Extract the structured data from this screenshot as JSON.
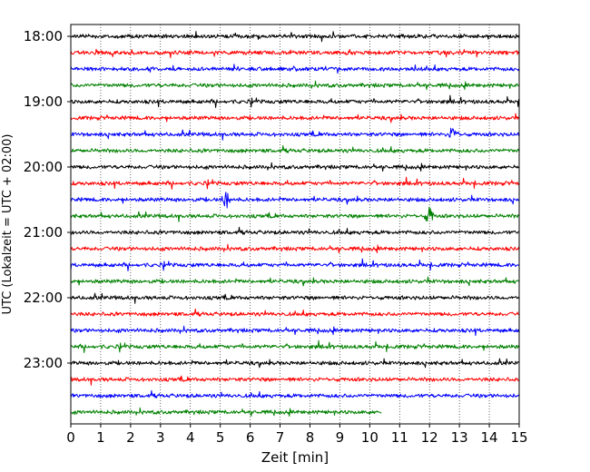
{
  "chart_data": {
    "type": "line",
    "title": "",
    "xlabel": "Zeit  [min]",
    "ylabel": "UTC (Lokalzeit = UTC + 02:00)",
    "xlim": [
      0,
      15
    ],
    "x_ticks": [
      "0",
      "1",
      "2",
      "3",
      "4",
      "5",
      "6",
      "7",
      "8",
      "9",
      "10",
      "11",
      "12",
      "13",
      "14",
      "15"
    ],
    "y_ticks": [
      "18:00",
      "19:00",
      "20:00",
      "21:00",
      "22:00",
      "23:00"
    ],
    "grid": "vertical dotted lines at each minute",
    "legend": "none",
    "trace_colors_cycle": [
      "#000000",
      "#ff0000",
      "#0000ff",
      "#008000"
    ],
    "traces": [
      {
        "start": "18:00",
        "color": "#000000",
        "end_min": 15
      },
      {
        "start": "18:15",
        "color": "#ff0000",
        "end_min": 15
      },
      {
        "start": "18:30",
        "color": "#0000ff",
        "end_min": 15
      },
      {
        "start": "18:45",
        "color": "#008000",
        "end_min": 15
      },
      {
        "start": "19:00",
        "color": "#000000",
        "end_min": 15
      },
      {
        "start": "19:15",
        "color": "#ff0000",
        "end_min": 15
      },
      {
        "start": "19:30",
        "color": "#0000ff",
        "end_min": 15
      },
      {
        "start": "19:45",
        "color": "#008000",
        "end_min": 15
      },
      {
        "start": "20:00",
        "color": "#000000",
        "end_min": 15
      },
      {
        "start": "20:15",
        "color": "#ff0000",
        "end_min": 15
      },
      {
        "start": "20:30",
        "color": "#0000ff",
        "end_min": 15
      },
      {
        "start": "20:45",
        "color": "#008000",
        "end_min": 15
      },
      {
        "start": "21:00",
        "color": "#000000",
        "end_min": 15
      },
      {
        "start": "21:15",
        "color": "#ff0000",
        "end_min": 15
      },
      {
        "start": "21:30",
        "color": "#0000ff",
        "end_min": 15
      },
      {
        "start": "21:45",
        "color": "#008000",
        "end_min": 15
      },
      {
        "start": "22:00",
        "color": "#000000",
        "end_min": 15
      },
      {
        "start": "22:15",
        "color": "#ff0000",
        "end_min": 15
      },
      {
        "start": "22:30",
        "color": "#0000ff",
        "end_min": 15
      },
      {
        "start": "22:45",
        "color": "#008000",
        "end_min": 15
      },
      {
        "start": "23:00",
        "color": "#000000",
        "end_min": 15
      },
      {
        "start": "23:15",
        "color": "#ff0000",
        "end_min": 15
      },
      {
        "start": "23:30",
        "color": "#0000ff",
        "end_min": 15
      },
      {
        "start": "23:45",
        "color": "#008000",
        "end_min": 10.4
      }
    ],
    "notable_spikes": [
      {
        "trace": "20:30",
        "x_min": 5.2,
        "description": "large blue spike"
      },
      {
        "trace": "20:45",
        "x_min": 12.0,
        "description": "green spike"
      },
      {
        "trace": "19:30",
        "x_min": 12.8,
        "description": "blue spike"
      }
    ]
  }
}
